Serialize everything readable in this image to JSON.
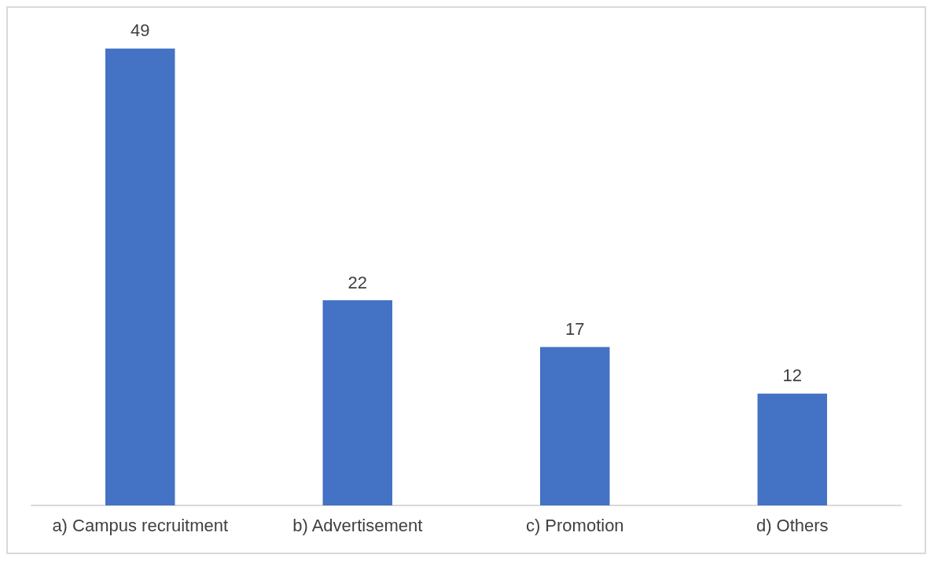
{
  "chart_data": {
    "type": "bar",
    "categories": [
      "a) Campus recruitment",
      "b) Advertisement",
      "c) Promotion",
      "d) Others"
    ],
    "values": [
      49,
      22,
      17,
      12
    ],
    "color": "#4472c4",
    "data_labels": true
  }
}
